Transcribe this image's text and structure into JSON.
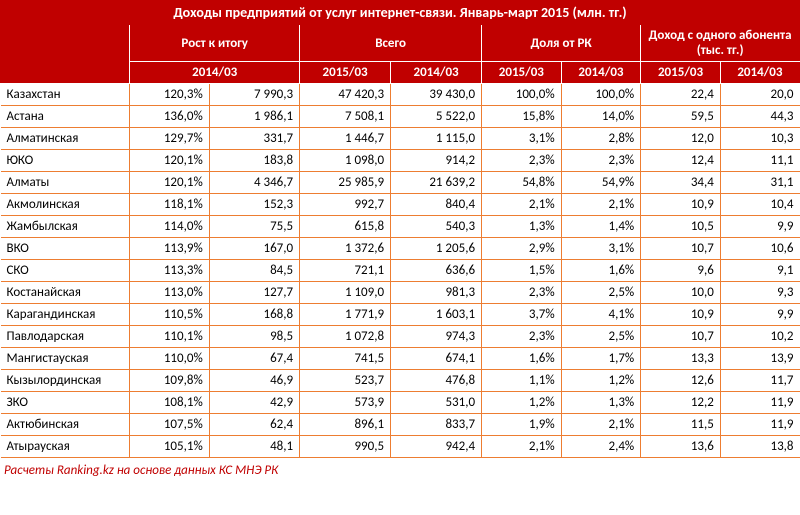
{
  "title": "Доходы предприятий от услуг интернет-связи. Январь-март 2015 (млн. тг.)",
  "headers": {
    "group1": "Рост к итогу",
    "group2": "Всего",
    "group3": "Доля от РК",
    "group4": "Доход с одного абонента (тыс. тг.)",
    "sub_2014_03": "2014/03",
    "sub_2015_03": "2015/03"
  },
  "rows": [
    {
      "region": "Казахстан",
      "growth_pct": "120,3%",
      "growth_val": "7 990,3",
      "total_2015": "47 420,3",
      "total_2014": "39 430,0",
      "share_2015": "100,0%",
      "share_2014": "100,0%",
      "arpu_2015": "22,4",
      "arpu_2014": "20,0"
    },
    {
      "region": "Астана",
      "growth_pct": "136,0%",
      "growth_val": "1 986,1",
      "total_2015": "7 508,1",
      "total_2014": "5 522,0",
      "share_2015": "15,8%",
      "share_2014": "14,0%",
      "arpu_2015": "59,5",
      "arpu_2014": "44,3"
    },
    {
      "region": "Алматинская",
      "growth_pct": "129,7%",
      "growth_val": "331,7",
      "total_2015": "1 446,7",
      "total_2014": "1 115,0",
      "share_2015": "3,1%",
      "share_2014": "2,8%",
      "arpu_2015": "12,0",
      "arpu_2014": "10,3"
    },
    {
      "region": "ЮКО",
      "growth_pct": "120,1%",
      "growth_val": "183,8",
      "total_2015": "1 098,0",
      "total_2014": "914,2",
      "share_2015": "2,3%",
      "share_2014": "2,3%",
      "arpu_2015": "12,4",
      "arpu_2014": "11,1"
    },
    {
      "region": "Алматы",
      "growth_pct": "120,1%",
      "growth_val": "4 346,7",
      "total_2015": "25 985,9",
      "total_2014": "21 639,2",
      "share_2015": "54,8%",
      "share_2014": "54,9%",
      "arpu_2015": "34,4",
      "arpu_2014": "31,1"
    },
    {
      "region": "Акмолинская",
      "growth_pct": "118,1%",
      "growth_val": "152,3",
      "total_2015": "992,7",
      "total_2014": "840,4",
      "share_2015": "2,1%",
      "share_2014": "2,1%",
      "arpu_2015": "10,9",
      "arpu_2014": "10,4"
    },
    {
      "region": "Жамбылская",
      "growth_pct": "114,0%",
      "growth_val": "75,5",
      "total_2015": "615,8",
      "total_2014": "540,3",
      "share_2015": "1,3%",
      "share_2014": "1,4%",
      "arpu_2015": "10,5",
      "arpu_2014": "9,9"
    },
    {
      "region": "ВКО",
      "growth_pct": "113,9%",
      "growth_val": "167,0",
      "total_2015": "1 372,6",
      "total_2014": "1 205,6",
      "share_2015": "2,9%",
      "share_2014": "3,1%",
      "arpu_2015": "10,7",
      "arpu_2014": "10,6"
    },
    {
      "region": "СКО",
      "growth_pct": "113,3%",
      "growth_val": "84,5",
      "total_2015": "721,1",
      "total_2014": "636,6",
      "share_2015": "1,5%",
      "share_2014": "1,6%",
      "arpu_2015": "9,6",
      "arpu_2014": "9,1"
    },
    {
      "region": "Костанайская",
      "growth_pct": "113,0%",
      "growth_val": "127,7",
      "total_2015": "1 109,0",
      "total_2014": "981,3",
      "share_2015": "2,3%",
      "share_2014": "2,5%",
      "arpu_2015": "10,0",
      "arpu_2014": "9,3"
    },
    {
      "region": "Карагандинская",
      "growth_pct": "110,5%",
      "growth_val": "168,8",
      "total_2015": "1 771,9",
      "total_2014": "1 603,1",
      "share_2015": "3,7%",
      "share_2014": "4,1%",
      "arpu_2015": "10,9",
      "arpu_2014": "9,9"
    },
    {
      "region": "Павлодарская",
      "growth_pct": "110,1%",
      "growth_val": "98,5",
      "total_2015": "1 072,8",
      "total_2014": "974,3",
      "share_2015": "2,3%",
      "share_2014": "2,5%",
      "arpu_2015": "10,7",
      "arpu_2014": "10,2"
    },
    {
      "region": "Мангистауская",
      "growth_pct": "110,0%",
      "growth_val": "67,4",
      "total_2015": "741,5",
      "total_2014": "674,1",
      "share_2015": "1,6%",
      "share_2014": "1,7%",
      "arpu_2015": "13,3",
      "arpu_2014": "13,9"
    },
    {
      "region": "Кызылординская",
      "growth_pct": "109,8%",
      "growth_val": "46,9",
      "total_2015": "523,7",
      "total_2014": "476,8",
      "share_2015": "1,1%",
      "share_2014": "1,2%",
      "arpu_2015": "12,6",
      "arpu_2014": "11,7"
    },
    {
      "region": "ЗКО",
      "growth_pct": "108,1%",
      "growth_val": "42,9",
      "total_2015": "573,9",
      "total_2014": "531,0",
      "share_2015": "1,2%",
      "share_2014": "1,3%",
      "arpu_2015": "12,2",
      "arpu_2014": "11,9"
    },
    {
      "region": "Актюбинская",
      "growth_pct": "107,5%",
      "growth_val": "62,4",
      "total_2015": "896,1",
      "total_2014": "833,7",
      "share_2015": "1,9%",
      "share_2014": "2,1%",
      "arpu_2015": "11,5",
      "arpu_2014": "11,9"
    },
    {
      "region": "Атырауская",
      "growth_pct": "105,1%",
      "growth_val": "48,1",
      "total_2015": "990,5",
      "total_2014": "942,4",
      "share_2015": "2,1%",
      "share_2014": "2,4%",
      "arpu_2015": "13,6",
      "arpu_2014": "13,8"
    }
  ],
  "footnote": "Расчеты Ranking.kz на основе данных КС МНЭ РК",
  "colors": {
    "header_bg": "#c00000",
    "header_fg": "#ffffff",
    "border": "#ed7d31",
    "footnote_color": "#c00000"
  }
}
